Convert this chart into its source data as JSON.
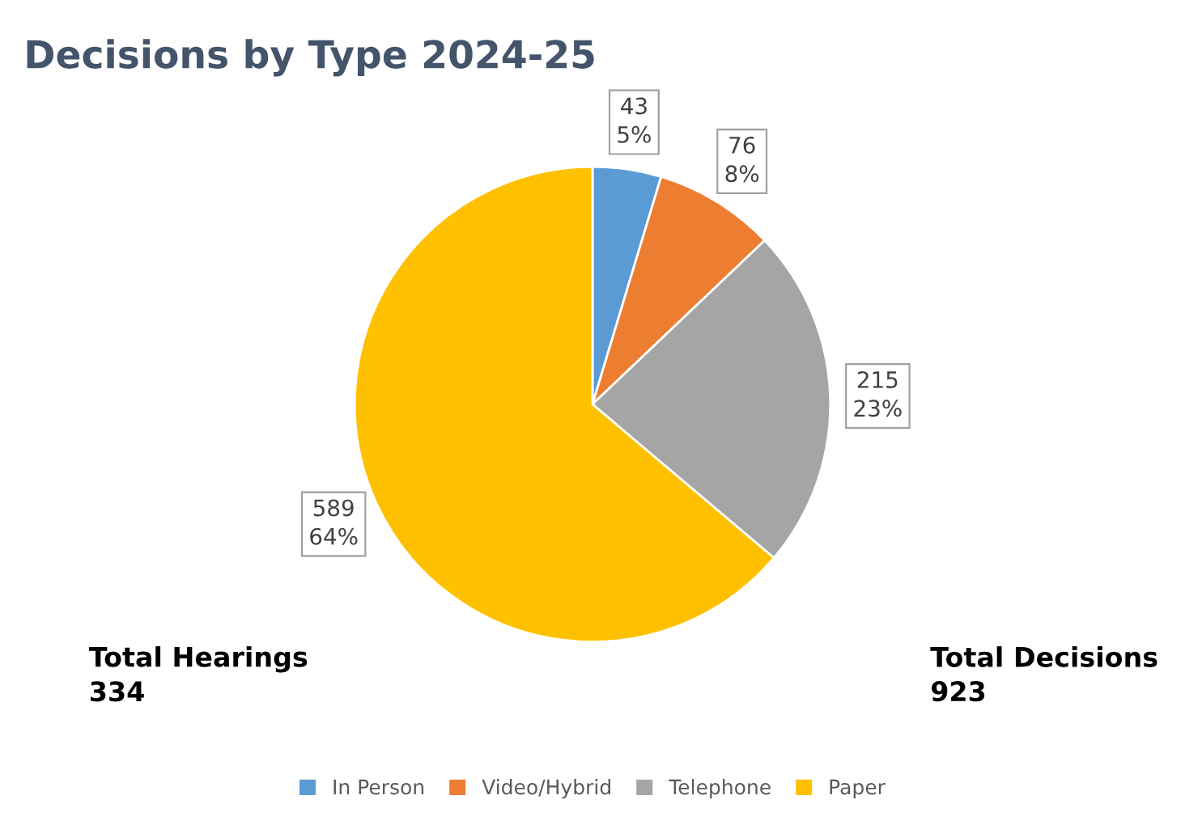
{
  "chart_data": {
    "type": "pie",
    "title": "Decisions by Type 2024-25",
    "categories": [
      "In Person",
      "Video/Hybrid",
      "Telephone",
      "Paper"
    ],
    "values": [
      43,
      76,
      215,
      589
    ],
    "colors": [
      "#5b9bd5",
      "#ed7d31",
      "#a5a5a5",
      "#ffc000"
    ],
    "value_labels": [
      "43\n5%",
      "76\n8%",
      "215\n23%",
      "589\n64%"
    ],
    "annotations": [
      "Total Hearings\n334",
      "Total Decisions\n923"
    ],
    "legend": "bottom"
  }
}
